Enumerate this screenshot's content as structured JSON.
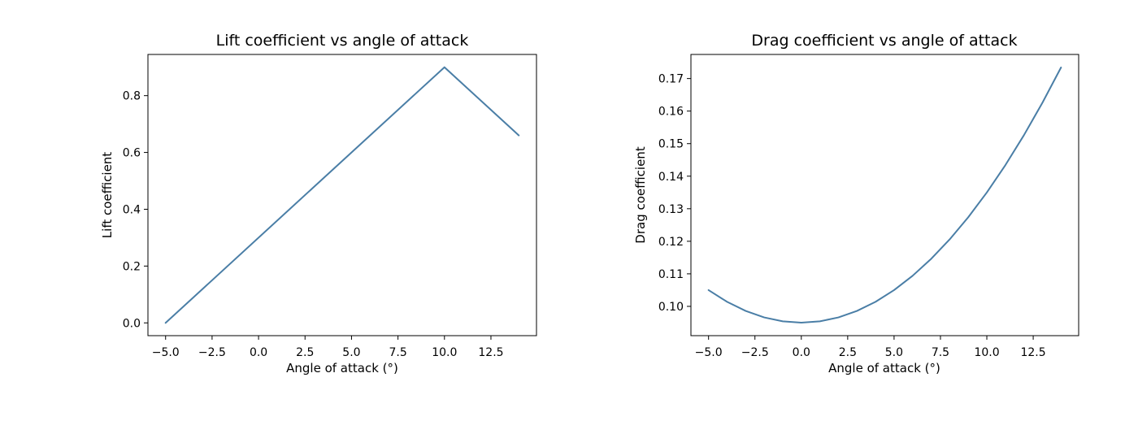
{
  "chart_data": [
    {
      "type": "line",
      "title": "Lift coefficient vs angle of attack",
      "xlabel": "Angle of attack (°)",
      "ylabel": "Lift coefficient",
      "xlim": [
        -5.95,
        14.95
      ],
      "ylim": [
        -0.045,
        0.945
      ],
      "xticks": [
        -5.0,
        -2.5,
        0.0,
        2.5,
        5.0,
        7.5,
        10.0,
        12.5
      ],
      "xtick_labels": [
        "−5.0",
        "−2.5",
        "0.0",
        "2.5",
        "5.0",
        "7.5",
        "10.0",
        "12.5"
      ],
      "yticks": [
        0.0,
        0.2,
        0.4,
        0.6,
        0.8
      ],
      "ytick_labels": [
        "0.0",
        "0.2",
        "0.4",
        "0.6",
        "0.8"
      ],
      "grid": false,
      "color": "#4a7ea6",
      "series": [
        {
          "x": [
            -5,
            10,
            14
          ],
          "values": [
            0.0,
            0.9,
            0.66
          ]
        }
      ]
    },
    {
      "type": "line",
      "title": "Drag coefficient vs angle of attack",
      "xlabel": "Angle of attack (°)",
      "ylabel": "Drag coefficient",
      "xlim": [
        -5.95,
        14.95
      ],
      "ylim": [
        0.091,
        0.1774
      ],
      "xticks": [
        -5.0,
        -2.5,
        0.0,
        2.5,
        5.0,
        7.5,
        10.0,
        12.5
      ],
      "xtick_labels": [
        "−5.0",
        "−2.5",
        "0.0",
        "2.5",
        "5.0",
        "7.5",
        "10.0",
        "12.5"
      ],
      "yticks": [
        0.1,
        0.11,
        0.12,
        0.13,
        0.14,
        0.15,
        0.16,
        0.17
      ],
      "ytick_labels": [
        "0.10",
        "0.11",
        "0.12",
        "0.13",
        "0.14",
        "0.15",
        "0.16",
        "0.17"
      ],
      "grid": false,
      "color": "#4a7ea6",
      "series": [
        {
          "x": [
            -5,
            -4,
            -3,
            -2,
            -1,
            0,
            1,
            2,
            3,
            4,
            5,
            6,
            7,
            8,
            9,
            10,
            11,
            12,
            13,
            14
          ],
          "values": [
            0.105,
            0.1014,
            0.0986,
            0.0966,
            0.0954,
            0.095,
            0.0954,
            0.0966,
            0.0986,
            0.1014,
            0.105,
            0.1094,
            0.1146,
            0.1206,
            0.1274,
            0.135,
            0.1434,
            0.1526,
            0.1626,
            0.1734
          ]
        }
      ]
    }
  ]
}
